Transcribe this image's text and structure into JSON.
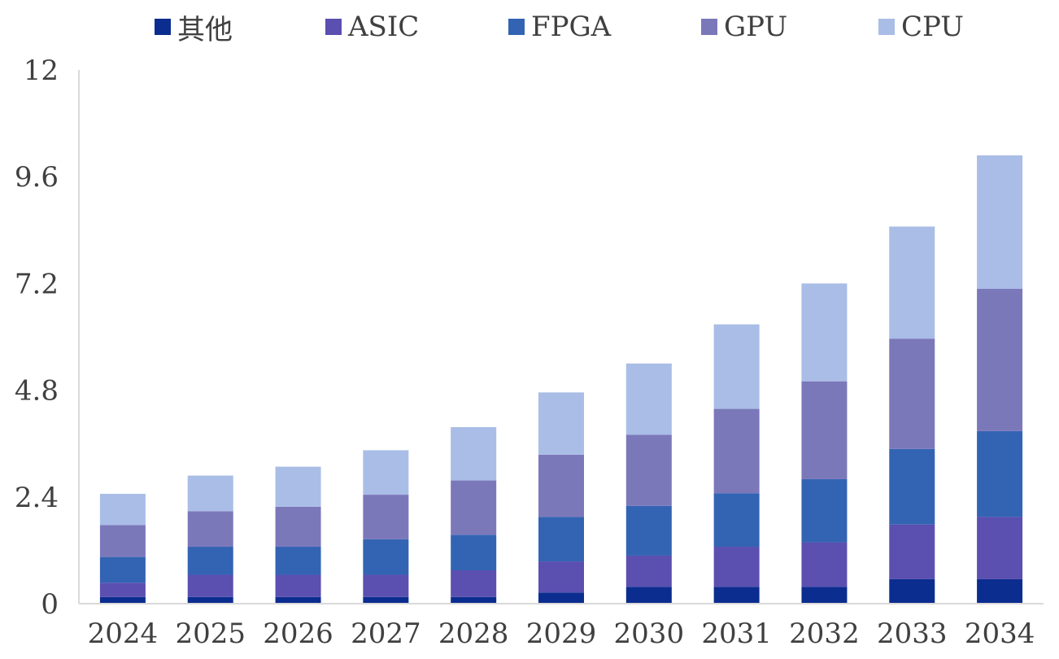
{
  "chart_data": {
    "type": "bar",
    "stacked": true,
    "categories": [
      "2024",
      "2025",
      "2026",
      "2027",
      "2028",
      "2029",
      "2030",
      "2031",
      "2032",
      "2033",
      "2034"
    ],
    "series": [
      {
        "name": "其他",
        "color": "#0b2d8f",
        "values": [
          0.15,
          0.15,
          0.15,
          0.15,
          0.15,
          0.25,
          0.38,
          0.38,
          0.38,
          0.55,
          0.55
        ]
      },
      {
        "name": "ASIC",
        "color": "#5b4fb0",
        "values": [
          0.32,
          0.5,
          0.5,
          0.5,
          0.6,
          0.7,
          0.7,
          0.9,
          1.0,
          1.23,
          1.4
        ]
      },
      {
        "name": "FPGA",
        "color": "#3364b3",
        "values": [
          0.58,
          0.63,
          0.63,
          0.8,
          0.8,
          1.0,
          1.12,
          1.2,
          1.42,
          1.7,
          1.93
        ]
      },
      {
        "name": "GPU",
        "color": "#7b78ba",
        "values": [
          0.72,
          0.8,
          0.9,
          1.0,
          1.22,
          1.4,
          1.6,
          1.9,
          2.2,
          2.48,
          3.2
        ]
      },
      {
        "name": "CPU",
        "color": "#a9bde6",
        "values": [
          0.7,
          0.8,
          0.9,
          1.0,
          1.2,
          1.4,
          1.6,
          1.9,
          2.2,
          2.52,
          3.0
        ]
      }
    ],
    "y_ticks": [
      "0",
      "2.4",
      "4.8",
      "7.2",
      "9.6",
      "12"
    ],
    "ylim": [
      0,
      12
    ],
    "title": "",
    "xlabel": "",
    "ylabel": "",
    "legend_position": "top-center",
    "grid": false,
    "axis_color": "#d9d9d9",
    "text_color": "#404040"
  }
}
